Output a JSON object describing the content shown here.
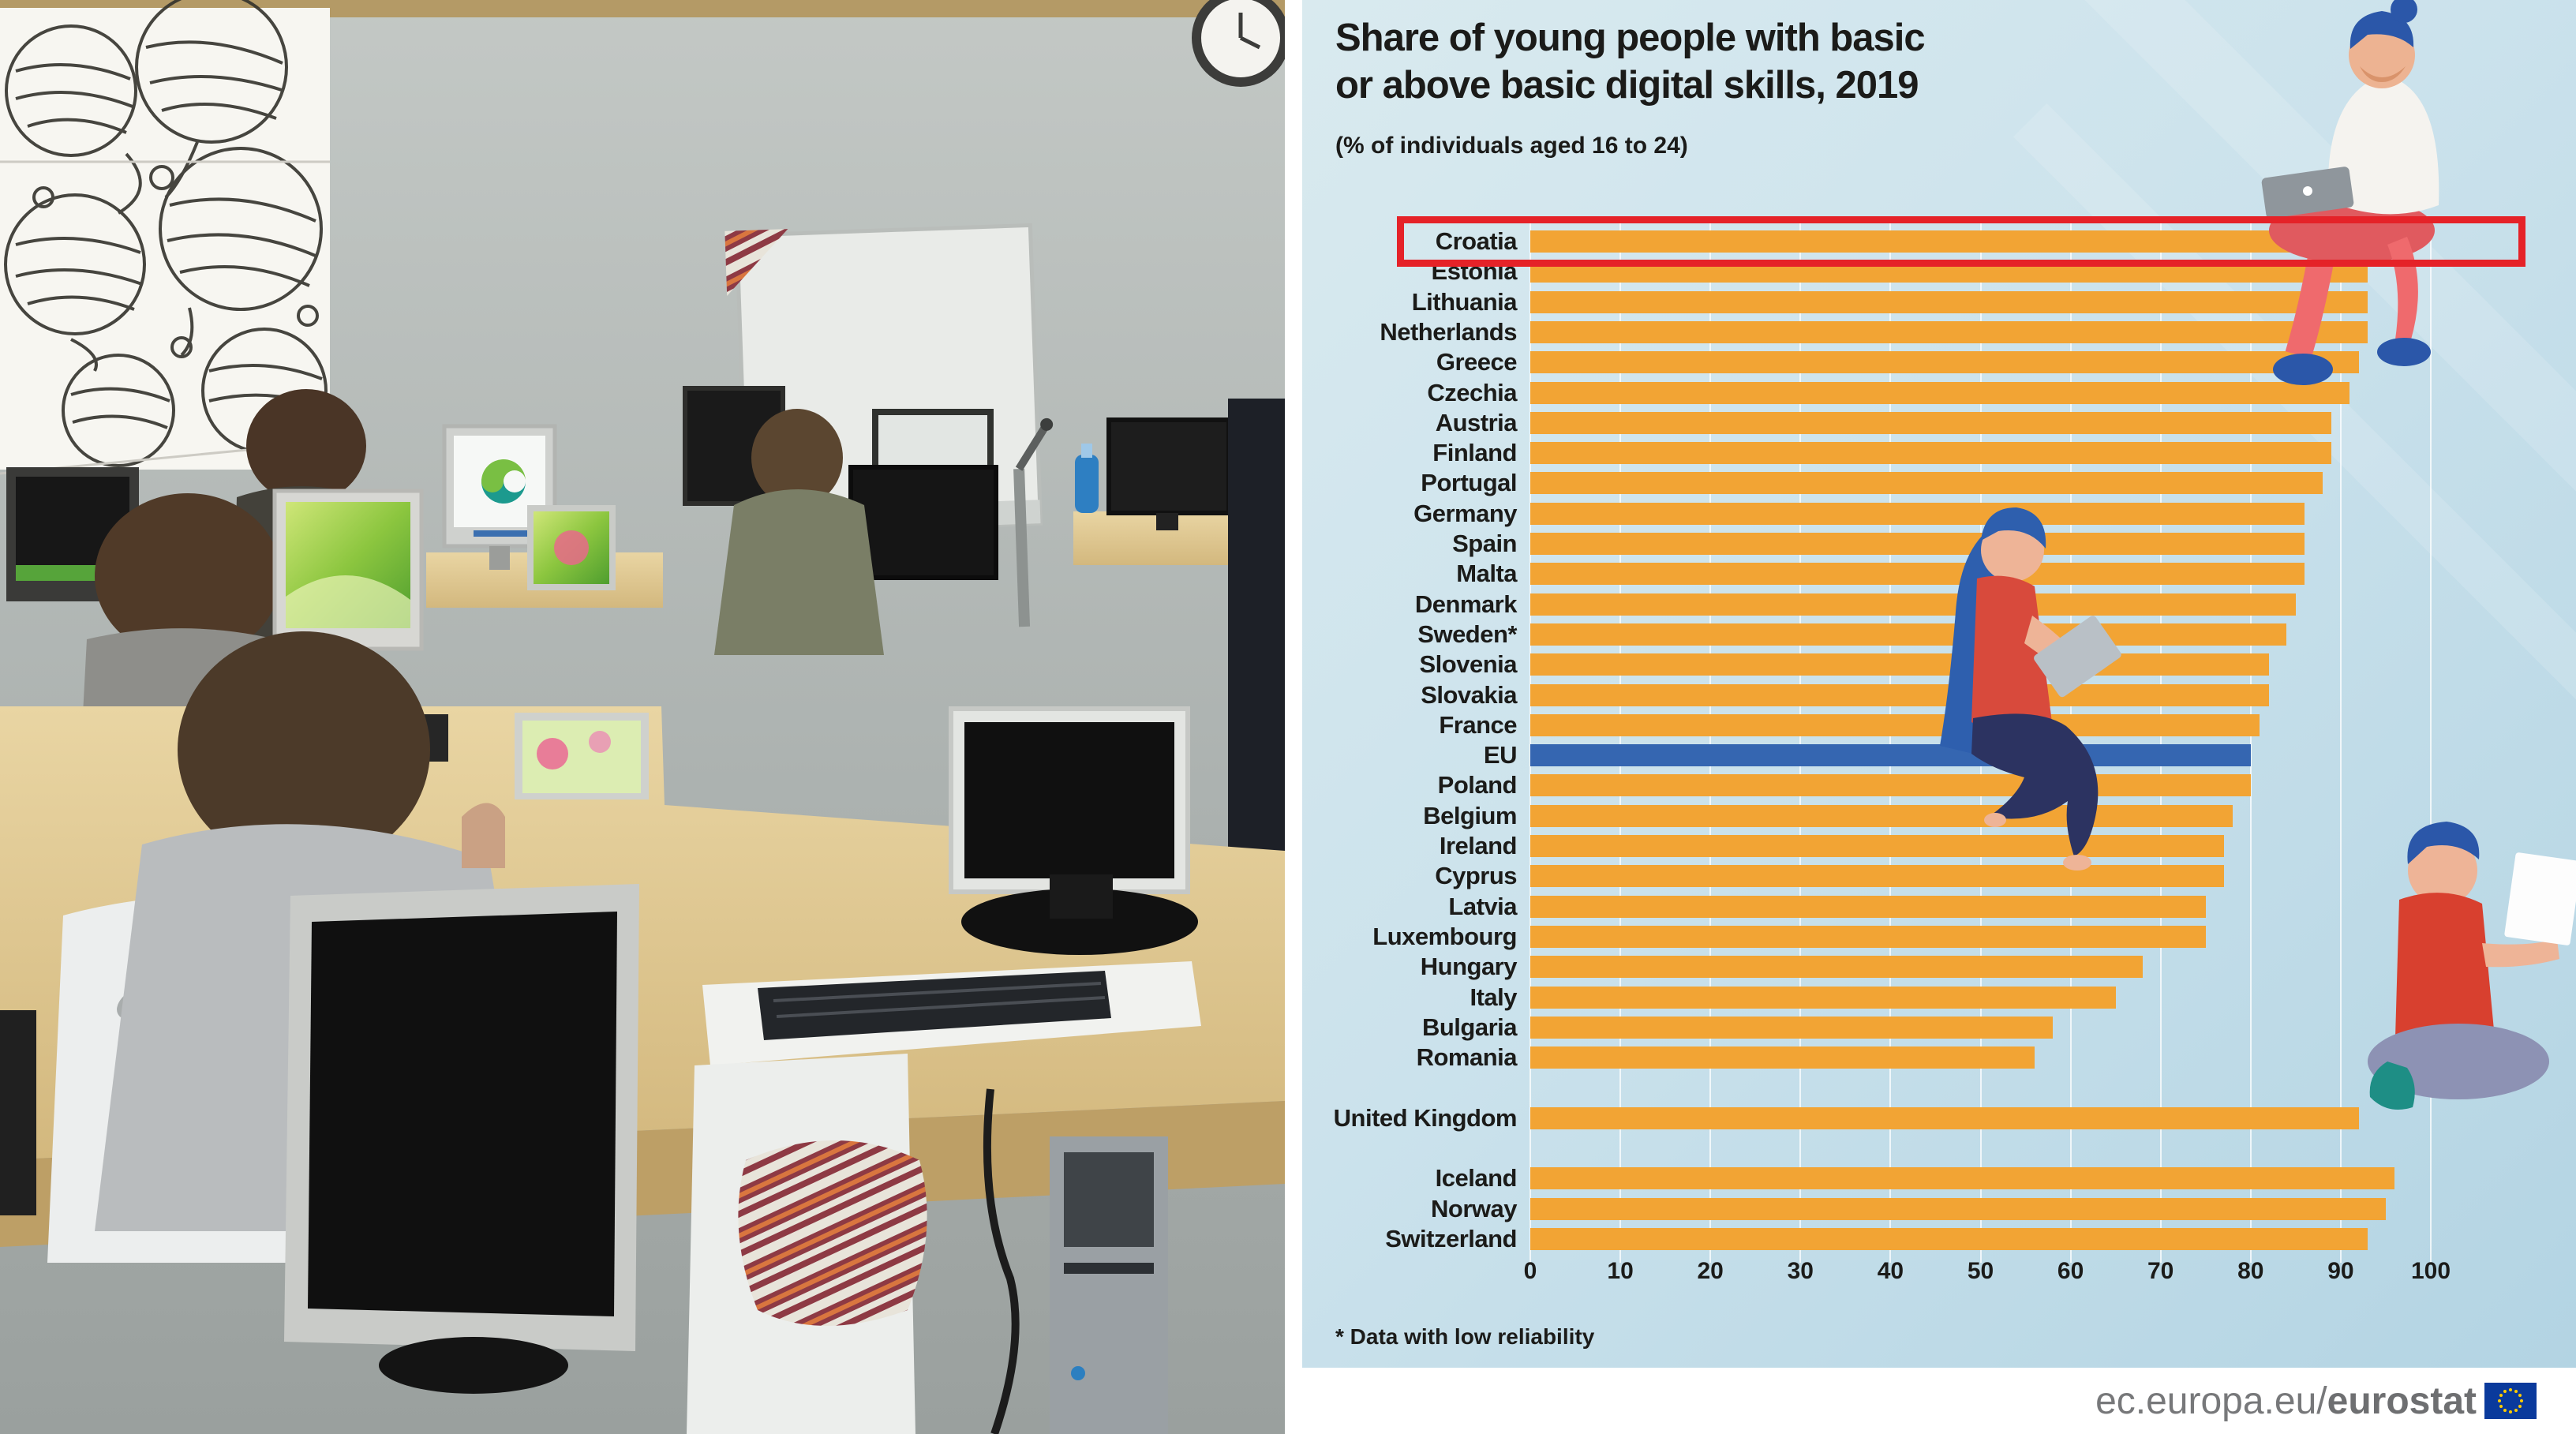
{
  "chart": {
    "title_line1": "Share of young people with basic",
    "title_line2": "or above basic digital skills, 2019",
    "subtitle": "(% of individuals aged 16 to 24)",
    "footnote": "* Data with low reliability",
    "footer_url_prefix": "ec.europa.eu/",
    "footer_url_bold": "eurostat"
  },
  "chart_data": {
    "type": "bar",
    "orientation": "horizontal",
    "title": "Share of young people with basic or above basic digital skills, 2019",
    "subtitle": "(% of individuals aged 16 to 24)",
    "xlabel": "% of individuals",
    "xlim": [
      0,
      100
    ],
    "xticks": [
      0,
      10,
      20,
      30,
      40,
      50,
      60,
      70,
      80,
      90,
      100
    ],
    "grid": "vertical-white",
    "bar_color": "#f2a434",
    "eu_bar_color": "#3566b1",
    "highlight_color": "#e52228",
    "highlighted_category": "Croatia",
    "footnote": "* Data with low reliability",
    "groups": [
      {
        "name": "eu-countries",
        "start_index": 0,
        "rows": [
          {
            "label": "Croatia",
            "value": 97
          },
          {
            "label": "Estonia",
            "value": 93
          },
          {
            "label": "Lithuania",
            "value": 93
          },
          {
            "label": "Netherlands",
            "value": 93
          },
          {
            "label": "Greece",
            "value": 92
          },
          {
            "label": "Czechia",
            "value": 91
          },
          {
            "label": "Austria",
            "value": 89
          },
          {
            "label": "Finland",
            "value": 89
          },
          {
            "label": "Portugal",
            "value": 88
          },
          {
            "label": "Germany",
            "value": 86
          },
          {
            "label": "Spain",
            "value": 86
          },
          {
            "label": "Malta",
            "value": 86
          },
          {
            "label": "Denmark",
            "value": 85
          },
          {
            "label": "Sweden*",
            "value": 84
          },
          {
            "label": "Slovenia",
            "value": 82
          },
          {
            "label": "Slovakia",
            "value": 82
          },
          {
            "label": "France",
            "value": 81
          },
          {
            "label": "EU",
            "value": 80,
            "eu": true
          },
          {
            "label": "Poland",
            "value": 80
          },
          {
            "label": "Belgium",
            "value": 78
          },
          {
            "label": "Ireland",
            "value": 77
          },
          {
            "label": "Cyprus",
            "value": 77
          },
          {
            "label": "Latvia",
            "value": 75
          },
          {
            "label": "Luxembourg",
            "value": 75
          },
          {
            "label": "Hungary",
            "value": 68
          },
          {
            "label": "Italy",
            "value": 65
          },
          {
            "label": "Bulgaria",
            "value": 58
          },
          {
            "label": "Romania",
            "value": 56
          }
        ]
      },
      {
        "name": "united-kingdom",
        "start_index": 29,
        "rows": [
          {
            "label": "United Kingdom",
            "value": 92
          }
        ]
      },
      {
        "name": "efta",
        "start_index": 31,
        "rows": [
          {
            "label": "Iceland",
            "value": 96
          },
          {
            "label": "Norway",
            "value": 95
          },
          {
            "label": "Switzerland",
            "value": 93
          }
        ]
      }
    ]
  }
}
